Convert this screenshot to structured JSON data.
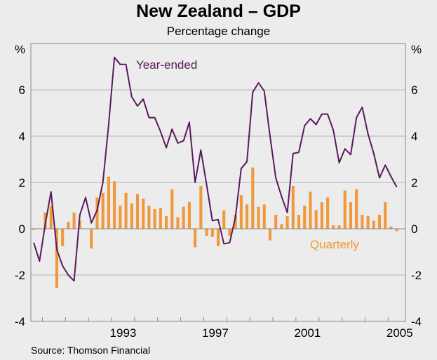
{
  "title": "New Zealand – GDP",
  "subtitle": "Percentage change",
  "source": "Source: Thomson Financial",
  "chart_data": {
    "type": "bar+line",
    "title": "New Zealand – GDP",
    "subtitle": "Percentage change",
    "ylabel_left": "%",
    "ylabel_right": "%",
    "ylim": [
      -4,
      8
    ],
    "yticks": [
      -4,
      -2,
      0,
      2,
      4,
      6
    ],
    "xlim": [
      1989.5,
      2005.75
    ],
    "xticks": [
      {
        "label": "1993",
        "value": 1993
      },
      {
        "label": "1997",
        "value": 1997
      },
      {
        "label": "2001",
        "value": 2001
      },
      {
        "label": "2005",
        "value": 2005
      }
    ],
    "grid": true,
    "start_quarter": [
      1989,
      3
    ],
    "colors": {
      "line": "#5a1a5e",
      "bar": "#f0983a",
      "grid": "#b4b4b4",
      "axis": "#888888"
    },
    "series": [
      {
        "name": "Year-ended",
        "label": "Year-ended",
        "type": "line",
        "values": [
          -0.6,
          -1.4,
          0.2,
          1.6,
          -0.9,
          -1.6,
          -2.0,
          -2.25,
          0.6,
          1.35,
          0.25,
          0.8,
          2.0,
          4.5,
          7.4,
          7.1,
          7.1,
          5.7,
          5.3,
          5.6,
          4.8,
          4.8,
          4.2,
          3.5,
          4.3,
          3.7,
          3.8,
          4.6,
          2.0,
          3.4,
          1.9,
          0.35,
          0.4,
          -0.65,
          -0.6,
          0.5,
          2.6,
          2.9,
          5.9,
          6.3,
          5.95,
          4.0,
          2.2,
          1.4,
          0.7,
          3.25,
          3.3,
          4.45,
          4.75,
          4.5,
          4.95,
          4.95,
          4.25,
          2.85,
          3.45,
          3.2,
          4.8,
          5.25,
          4.1,
          3.25,
          2.2,
          2.75,
          2.25,
          1.8
        ]
      },
      {
        "name": "Quarterly",
        "label": "Quarterly",
        "type": "bar",
        "values": [
          -0.05,
          0.0,
          0.7,
          1.0,
          -2.55,
          -0.75,
          0.3,
          0.7,
          0.35,
          0.0,
          -0.85,
          1.35,
          1.55,
          2.25,
          2.05,
          1.0,
          1.55,
          1.1,
          1.5,
          1.3,
          1.0,
          0.85,
          0.9,
          0.55,
          1.7,
          0.5,
          0.95,
          1.15,
          -0.8,
          1.85,
          -0.3,
          -0.35,
          -0.75,
          0.8,
          -0.3,
          0.6,
          1.45,
          1.05,
          2.65,
          0.95,
          1.05,
          -0.5,
          0.6,
          0.2,
          0.55,
          1.85,
          0.6,
          1.0,
          1.6,
          0.8,
          1.15,
          1.35,
          0.15,
          0.15,
          1.65,
          1.15,
          1.7,
          0.6,
          0.55,
          0.35,
          0.6,
          1.15,
          0.1,
          -0.1
        ]
      }
    ]
  }
}
